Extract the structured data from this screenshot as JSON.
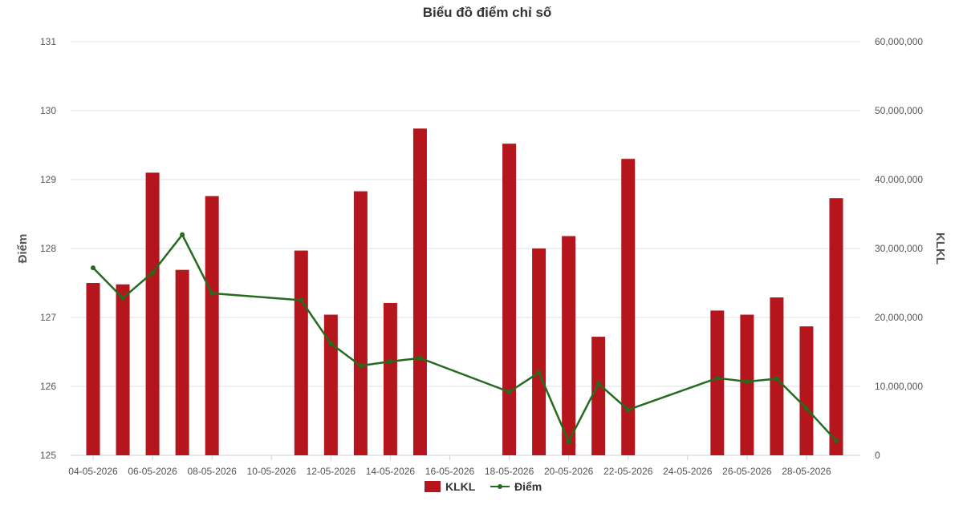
{
  "chart_data": {
    "type": "bar+line",
    "title": "Biểu đồ điểm chỉ số",
    "y_left": {
      "label": "Điểm",
      "range": [
        125,
        131
      ],
      "ticks": [
        "125",
        "126",
        "127",
        "128",
        "129",
        "130",
        "131"
      ]
    },
    "y_right": {
      "label": "KLKL",
      "range": [
        0,
        60000000
      ],
      "ticks": [
        "0",
        "10,000,000",
        "20,000,000",
        "30,000,000",
        "40,000,000",
        "50,000,000",
        "60,000,000"
      ]
    },
    "x_ticks": [
      "04-05-2026",
      "06-05-2026",
      "08-05-2026",
      "10-05-2026",
      "12-05-2026",
      "14-05-2026",
      "16-05-2026",
      "18-05-2026",
      "20-05-2026",
      "22-05-2026",
      "24-05-2026",
      "26-05-2026",
      "28-05-2026"
    ],
    "x_range": [
      "04-05-2026",
      "29-05-2026"
    ],
    "grid": true,
    "legend_position": "bottom",
    "colors": {
      "bar": "#b5151c",
      "line": "#256b1e"
    },
    "series": [
      {
        "name": "KLKL",
        "type": "bar",
        "axis": "right",
        "points": [
          {
            "x": "04-05-2026",
            "y": 25000000
          },
          {
            "x": "05-05-2026",
            "y": 24800000
          },
          {
            "x": "06-05-2026",
            "y": 41000000
          },
          {
            "x": "07-05-2026",
            "y": 26900000
          },
          {
            "x": "08-05-2026",
            "y": 37600000
          },
          {
            "x": "11-05-2026",
            "y": 29700000
          },
          {
            "x": "12-05-2026",
            "y": 20400000
          },
          {
            "x": "13-05-2026",
            "y": 38300000
          },
          {
            "x": "14-05-2026",
            "y": 22100000
          },
          {
            "x": "15-05-2026",
            "y": 47400000
          },
          {
            "x": "18-05-2026",
            "y": 45200000
          },
          {
            "x": "19-05-2026",
            "y": 30000000
          },
          {
            "x": "20-05-2026",
            "y": 31800000
          },
          {
            "x": "21-05-2026",
            "y": 17200000
          },
          {
            "x": "22-05-2026",
            "y": 43000000
          },
          {
            "x": "25-05-2026",
            "y": 21000000
          },
          {
            "x": "26-05-2026",
            "y": 20400000
          },
          {
            "x": "27-05-2026",
            "y": 22900000
          },
          {
            "x": "28-05-2026",
            "y": 18700000
          },
          {
            "x": "29-05-2026",
            "y": 37300000
          }
        ]
      },
      {
        "name": "Điểm",
        "type": "line",
        "axis": "left",
        "points": [
          {
            "x": "04-05-2026",
            "y": 127.72
          },
          {
            "x": "05-05-2026",
            "y": 127.28
          },
          {
            "x": "06-05-2026",
            "y": 127.65
          },
          {
            "x": "07-05-2026",
            "y": 128.2
          },
          {
            "x": "08-05-2026",
            "y": 127.35
          },
          {
            "x": "11-05-2026",
            "y": 127.25
          },
          {
            "x": "12-05-2026",
            "y": 126.62
          },
          {
            "x": "13-05-2026",
            "y": 126.3
          },
          {
            "x": "14-05-2026",
            "y": 126.36
          },
          {
            "x": "15-05-2026",
            "y": 126.41
          },
          {
            "x": "18-05-2026",
            "y": 125.92
          },
          {
            "x": "19-05-2026",
            "y": 126.2
          },
          {
            "x": "20-05-2026",
            "y": 125.2
          },
          {
            "x": "21-05-2026",
            "y": 126.04
          },
          {
            "x": "22-05-2026",
            "y": 125.66
          },
          {
            "x": "25-05-2026",
            "y": 126.12
          },
          {
            "x": "26-05-2026",
            "y": 126.07
          },
          {
            "x": "27-05-2026",
            "y": 126.11
          },
          {
            "x": "28-05-2026",
            "y": 125.68
          },
          {
            "x": "29-05-2026",
            "y": 125.21
          }
        ]
      }
    ]
  }
}
